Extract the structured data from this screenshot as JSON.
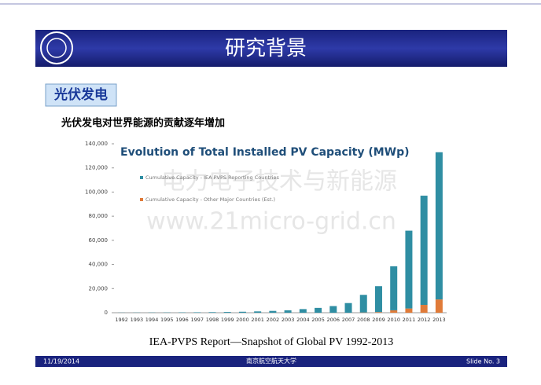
{
  "slide": {
    "title": "研究背景",
    "tag": "光伏发电",
    "subtitle": "光伏发电对世界能源的贡献逐年增加",
    "caption": "IEA-PVPS Report—Snapshot of Global PV 1992-2013",
    "watermarks": [
      "电力电子技术与新能源",
      "www.21micro-grid.cn"
    ],
    "footer": {
      "date": "11/19/2014",
      "school": "南京航空航天大学",
      "slide_no": "Slide No. 3"
    }
  },
  "chart_data": {
    "type": "stacked-bar",
    "title": "Evolution of Total Installed PV Capacity (MWp)",
    "categories": [
      "1992",
      "1993",
      "1994",
      "1995",
      "1996",
      "1997",
      "1998",
      "1999",
      "2000",
      "2001",
      "2002",
      "2003",
      "2004",
      "2005",
      "2006",
      "2007",
      "2008",
      "2009",
      "2010",
      "2011",
      "2012",
      "2013"
    ],
    "series": [
      {
        "name": "Cumulative Capacity - IEA PVPS Reporting Countries",
        "color": "#2f8ea3",
        "values": [
          100,
          130,
          170,
          200,
          260,
          350,
          460,
          600,
          800,
          1100,
          1500,
          2000,
          3000,
          4000,
          5500,
          8000,
          14600,
          21500,
          36500,
          64500,
          90500,
          122000
        ]
      },
      {
        "name": "Cumulative Capacity - Other Major Countries (Est.)",
        "color": "#e07b39",
        "values": [
          0,
          0,
          0,
          0,
          0,
          0,
          0,
          0,
          0,
          0,
          0,
          0,
          0,
          0,
          0,
          0,
          200,
          500,
          2000,
          3500,
          6500,
          11000
        ]
      }
    ],
    "ylim": [
      0,
      140000
    ],
    "yticks": [
      0,
      {
        "value": 20000,
        "label": "20,000"
      },
      {
        "value": 40000,
        "label": "40,000"
      },
      {
        "value": 60000,
        "label": "60,000"
      },
      {
        "value": 80000,
        "label": "80,000"
      },
      {
        "value": 100000,
        "label": "100,000"
      },
      {
        "value": 120000,
        "label": "120,000"
      },
      {
        "value": 140000,
        "label": "140,000"
      }
    ]
  }
}
